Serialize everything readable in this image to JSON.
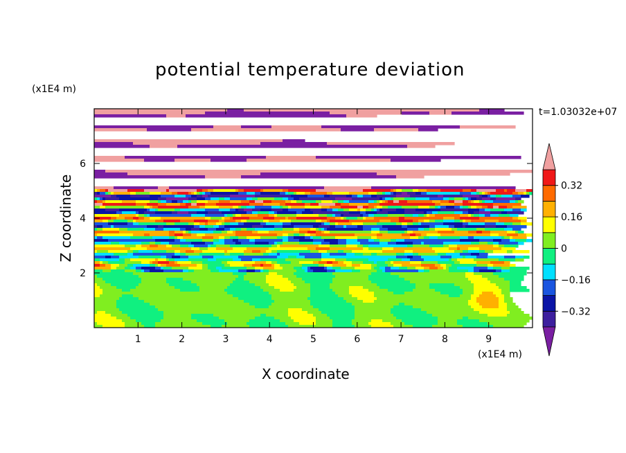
{
  "chart_data": {
    "type": "heatmap",
    "title": "potential temperature deviation",
    "time_label": "t=1.03032e+07",
    "xlabel": "X coordinate",
    "ylabel": "Z coordinate",
    "x_multiplier": "(x1E4 m)",
    "y_multiplier": "(x1E4 m)",
    "xlim": [
      0,
      10
    ],
    "ylim": [
      0,
      8
    ],
    "x_ticks": [
      1,
      2,
      3,
      4,
      5,
      6,
      7,
      8,
      9
    ],
    "y_ticks": [
      2,
      4,
      6
    ],
    "x_tick_labels": [
      "1",
      "2",
      "3",
      "4",
      "5",
      "6",
      "7",
      "8",
      "9"
    ],
    "y_tick_labels": [
      "2",
      "4",
      "6"
    ],
    "colorbar": {
      "labels": [
        "0.32",
        "0.16",
        "0",
        "−0.16",
        "−0.32"
      ],
      "label_values": [
        0.32,
        0.16,
        0,
        -0.16,
        -0.32
      ],
      "levels": [
        -0.4,
        -0.32,
        -0.24,
        -0.16,
        -0.08,
        0,
        0.08,
        0.16,
        0.24,
        0.32,
        0.4
      ],
      "colors": [
        "#7a1fa2",
        "#3d1f9e",
        "#0a14a6",
        "#1a55e0",
        "#00e0ff",
        "#10f080",
        "#80ee20",
        "#ffff00",
        "#ffb000",
        "#ff6a00",
        "#f01818",
        "#f0a0a0"
      ],
      "extend": "both"
    }
  }
}
